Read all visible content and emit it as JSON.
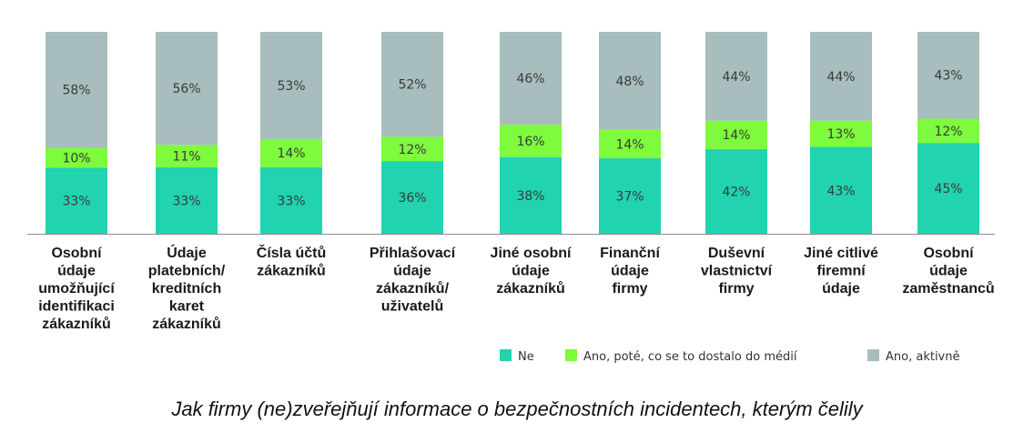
{
  "caption": "Jak firmy (ne)zveřejňují informace o bezpečnostních incidentech, kterým čelily",
  "chart_data": {
    "type": "bar",
    "stacked": true,
    "normalized": true,
    "categories": [
      [
        "Osobní",
        "údaje",
        "umožňující",
        "identifikaci",
        "zákazníků"
      ],
      [
        "Údaje",
        "platebních/",
        "kreditních",
        "karet",
        "zákazníků"
      ],
      [
        "Čísla účtů",
        "zákazníků"
      ],
      [
        "Přihlašovací",
        "údaje",
        "zákazníků/",
        "uživatelů"
      ],
      [
        "Jiné osobní",
        "údaje",
        "zákazníků"
      ],
      [
        "Finanční",
        "údaje",
        "firmy"
      ],
      [
        "Duševní",
        "vlastnictví",
        "firmy"
      ],
      [
        "Jiné citlivé",
        "firemní",
        "údaje"
      ],
      [
        "Osobní",
        "údaje",
        "zaměstnanců"
      ]
    ],
    "series": [
      {
        "name": "Ne",
        "color": "#22d3b0",
        "values": [
          33,
          33,
          33,
          36,
          38,
          37,
          42,
          43,
          45
        ]
      },
      {
        "name": "Ano, poté, co se to dostalo do médií",
        "color": "#7dfb3c",
        "values": [
          10,
          11,
          14,
          12,
          16,
          14,
          14,
          13,
          12
        ]
      },
      {
        "name": "Ano, aktivně",
        "color": "#a8bdbd",
        "values": [
          58,
          56,
          53,
          52,
          46,
          48,
          44,
          44,
          43
        ]
      }
    ],
    "value_suffix": "%",
    "legend_position": "bottom-right",
    "grid": false
  }
}
